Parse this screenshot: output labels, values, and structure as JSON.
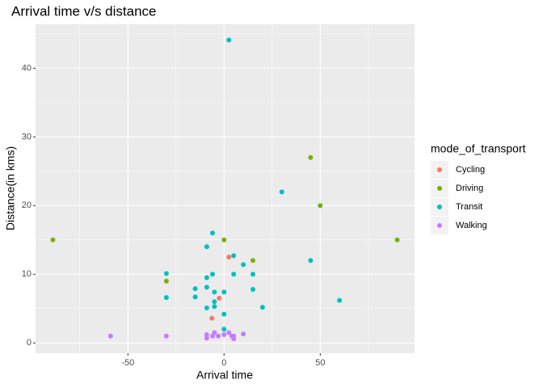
{
  "chart_data": {
    "type": "scatter",
    "title": "Arrival time v/s distance",
    "x_label": "Arrival time",
    "y_label": "Distance(in kms)",
    "legend_title": "mode_of_transport",
    "legend_position": "right",
    "grid": true,
    "xlim": [
      -98,
      99
    ],
    "ylim": [
      -1.5,
      46.4
    ],
    "xticks": [
      -50,
      0,
      50
    ],
    "yticks": [
      0,
      10,
      20,
      30,
      40
    ],
    "x_minor_grid": [
      -75,
      -25,
      25,
      75
    ],
    "y_minor_grid": [
      5,
      15,
      25,
      35,
      45
    ],
    "series": [
      {
        "name": "Cycling",
        "color": "#F8766D",
        "x": [
          2.5,
          -2.5,
          -6.3
        ],
        "values": [
          12.5,
          6.5,
          3.6
        ]
      },
      {
        "name": "Driving",
        "color": "#7CAE00",
        "x": [
          -89,
          45,
          50,
          90,
          0,
          15,
          -30
        ],
        "values": [
          15,
          27,
          20,
          15,
          15,
          12,
          9
        ]
      },
      {
        "name": "Transit",
        "color": "#00BFC4",
        "x": [
          2.5,
          30,
          -6,
          -9,
          5,
          45,
          10,
          -30,
          -6,
          5,
          15,
          -9,
          -15,
          -9,
          -5,
          0,
          15,
          -15,
          -30,
          -5,
          -5,
          -9,
          20,
          60,
          0,
          0
        ],
        "values": [
          44.1,
          22,
          16,
          14,
          12.7,
          12,
          11.4,
          10.1,
          10,
          10,
          10,
          9.5,
          7.9,
          8.1,
          7.4,
          7.4,
          7.8,
          6.7,
          6.6,
          6,
          5.3,
          5.1,
          5.2,
          6.2,
          4.2,
          2
        ]
      },
      {
        "name": "Walking",
        "color": "#C77CFF",
        "x": [
          -59,
          -30,
          -9,
          -9,
          -5,
          -3,
          0,
          2.5,
          5,
          5,
          10,
          4,
          -6
        ],
        "values": [
          1,
          1,
          1.2,
          0.7,
          1.5,
          1,
          1.2,
          1.5,
          1,
          0.6,
          1.3,
          1,
          1
        ]
      }
    ]
  }
}
